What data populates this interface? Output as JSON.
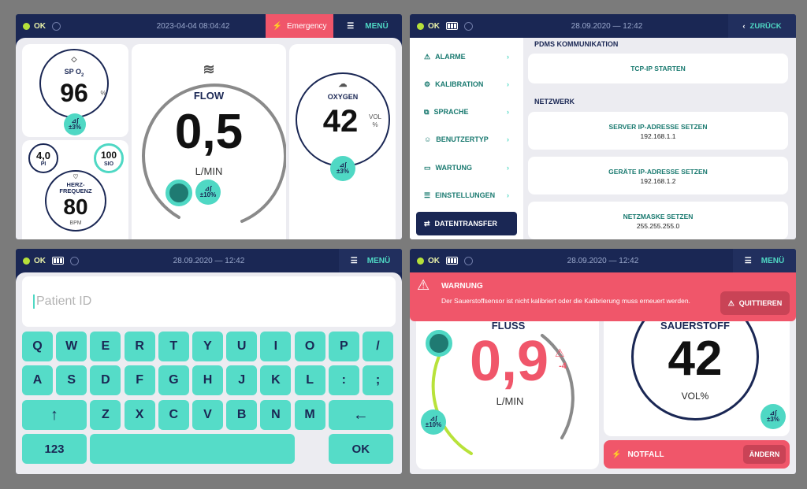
{
  "p1": {
    "status": "OK",
    "datetime": "2023-04-04 08:04:42",
    "emergency_label": "Emergency",
    "menu_label": "MENÜ",
    "spo2": {
      "label": "SP O",
      "sub": "2",
      "value": "96",
      "unit": "%",
      "tolerance": "±3%"
    },
    "pi": {
      "value": "4,0",
      "label": "PI"
    },
    "sio": {
      "value": "100",
      "label": "SIO"
    },
    "heart": {
      "label_line1": "HERZ-",
      "label_line2": "FREQUENZ",
      "value": "80",
      "unit": "BPM"
    },
    "flow": {
      "label": "FLOW",
      "value": "0,5",
      "unit": "L/MIN",
      "tolerance": "±10%"
    },
    "oxygen": {
      "label": "OXYGEN",
      "value": "42",
      "unit_line1": "VOL",
      "unit_line2": "%",
      "tolerance": "±3%"
    }
  },
  "p2": {
    "status": "OK",
    "datetime": "28.09.2020 — 12:42",
    "back_label": "ZURÜCK",
    "menu_items": [
      {
        "label": "ALARME",
        "icon": "alarm-icon"
      },
      {
        "label": "KALIBRATION",
        "icon": "gear-icon"
      },
      {
        "label": "SPRACHE",
        "icon": "language-icon"
      },
      {
        "label": "BENUTZERTYP",
        "icon": "user-icon"
      },
      {
        "label": "WARTUNG",
        "icon": "monitor-icon"
      },
      {
        "label": "EINSTELLUNGEN",
        "icon": "settings-icon"
      },
      {
        "label": "DATENTRANSFER",
        "icon": "transfer-icon"
      }
    ],
    "section_pdms": "PDMS KOMMUNIKATION",
    "tcp_label": "TCP-IP STARTEN",
    "section_netz": "NETZWERK",
    "server_label": "SERVER IP-ADRESSE SETZEN",
    "server_value": "192.168.1.1",
    "device_label": "GERÄTE IP-ADRESSE SETZEN",
    "device_value": "192.168.1.2",
    "mask_label": "NETZMASKE SETZEN",
    "mask_value": "255.255.255.0"
  },
  "p3": {
    "status": "OK",
    "datetime": "28.09.2020 — 12:42",
    "menu_label": "MENÜ",
    "input_placeholder": "Patient ID",
    "row1": [
      "Q",
      "W",
      "E",
      "R",
      "T",
      "Y",
      "U",
      "I",
      "O",
      "P",
      "/"
    ],
    "row2": [
      "A",
      "S",
      "D",
      "F",
      "G",
      "H",
      "J",
      "K",
      "L",
      ":",
      ";"
    ],
    "row3": [
      "↑",
      "Z",
      "X",
      "C",
      "V",
      "B",
      "N",
      "M",
      "←"
    ],
    "k123": "123",
    "kok": "OK"
  },
  "p4": {
    "status": "OK",
    "datetime": "28.09.2020 — 12:42",
    "menu_label": "MENÜ",
    "warn_title": "WARNUNG",
    "warn_text": "Der Sauerstoffsensor ist nicht kalibriert oder die Kalibrierung muss erneuert werden.",
    "ack_label": "QUITTIEREN",
    "flow_label": "FLUSS",
    "flow_value": "0,9",
    "flow_unit": "L/MIN",
    "flow_delta": "-4",
    "flow_tolerance": "±10%",
    "oxy_label": "SAUERSTOFF",
    "oxy_value": "42",
    "oxy_unit": "VOL%",
    "oxy_tolerance": "±3%",
    "notfall_label": "NOTFALL",
    "change_label": "ÄNDERN"
  }
}
